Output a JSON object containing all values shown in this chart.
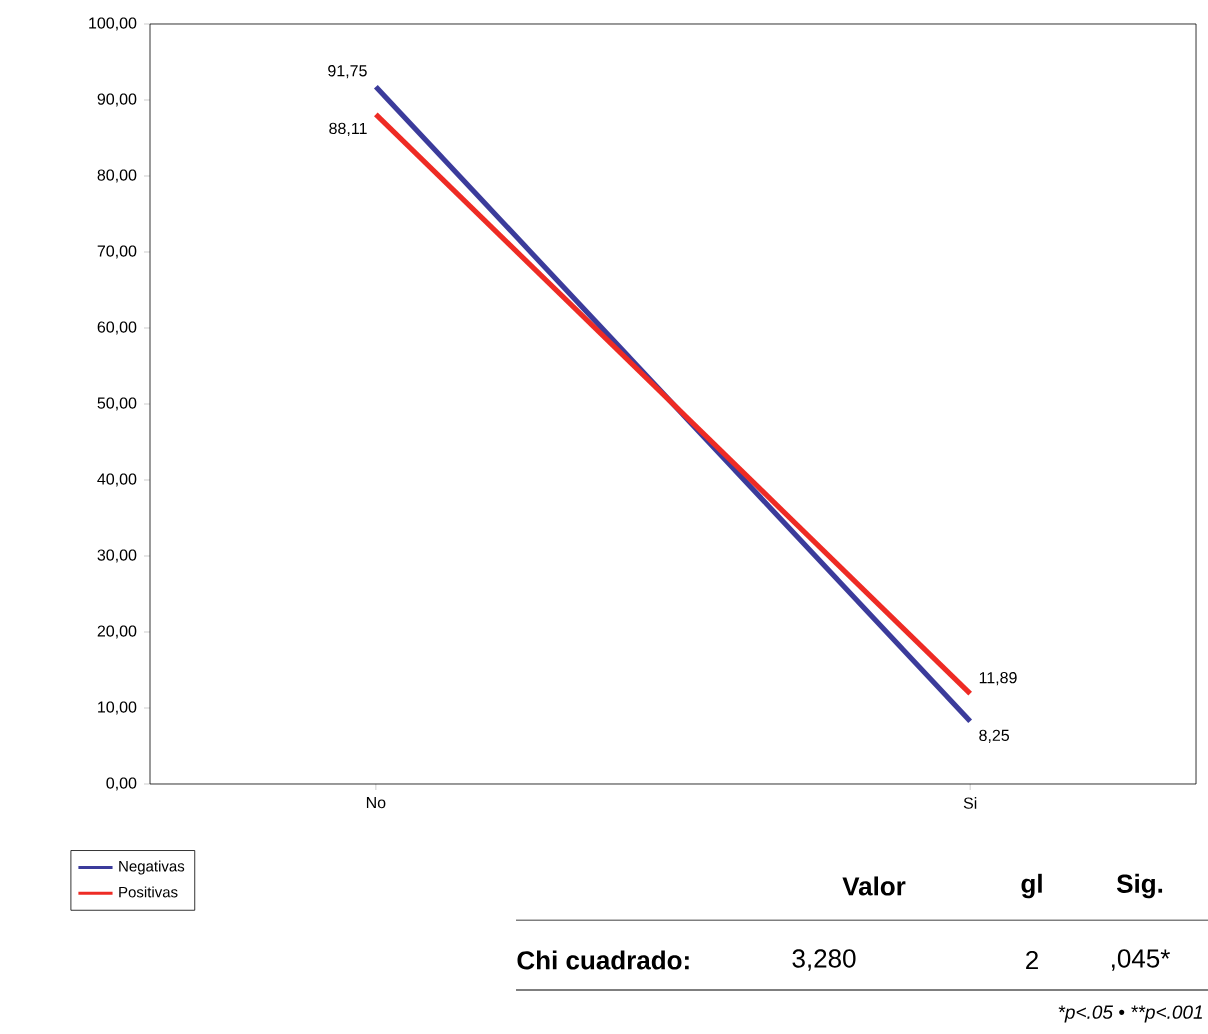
{
  "chart_data": {
    "type": "line",
    "categories": [
      "No",
      "Si"
    ],
    "series": [
      {
        "name": "Negativas",
        "color": "#3b3b9b",
        "values": [
          91.75,
          8.25
        ],
        "value_labels": [
          "91,75",
          "8,25"
        ]
      },
      {
        "name": "Positivas",
        "color": "#ee2b24",
        "values": [
          88.11,
          11.89
        ],
        "value_labels": [
          "88,11",
          "11,89"
        ]
      }
    ],
    "ylim": [
      0,
      100
    ],
    "yticks": [
      {
        "value": 0,
        "label": "0,00"
      },
      {
        "value": 10,
        "label": "10,00"
      },
      {
        "value": 20,
        "label": "20,00"
      },
      {
        "value": 30,
        "label": "30,00"
      },
      {
        "value": 40,
        "label": "40,00"
      },
      {
        "value": 50,
        "label": "50,00"
      },
      {
        "value": 60,
        "label": "60,00"
      },
      {
        "value": 70,
        "label": "70,00"
      },
      {
        "value": 80,
        "label": "80,00"
      },
      {
        "value": 90,
        "label": "90,00"
      },
      {
        "value": 100,
        "label": "100,00"
      }
    ],
    "grid": false,
    "legend": "bottom left",
    "marker": "none",
    "line_style": "solid",
    "annotations": [
      "Valor",
      "gl",
      "Sig.",
      "Chi cuadrado:",
      "3,280",
      "2",
      ",045*",
      "*p<.05 • **p<.001"
    ]
  }
}
